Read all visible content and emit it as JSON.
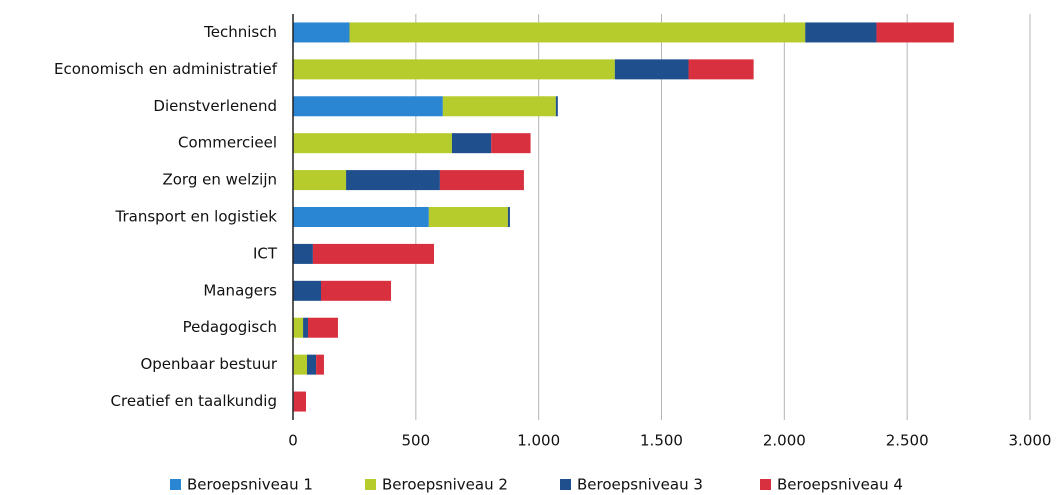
{
  "chart_data": {
    "type": "hbar-stacked",
    "categories": [
      "Technisch",
      "Economisch en administratief",
      "Dienstverlenend",
      "Commercieel",
      "Zorg en welzijn",
      "Transport en logistiek",
      "ICT",
      "Managers",
      "Pedagogisch",
      "Openbaar bestuur",
      "Creatief en taalkundig"
    ],
    "series": [
      {
        "name": "Beroepsniveau 1",
        "color": "#2a85d3",
        "values": [
          230,
          0,
          610,
          0,
          0,
          553,
          0,
          0,
          0,
          0,
          0
        ]
      },
      {
        "name": "Beroepsniveau 2",
        "color": "#b6cc2c",
        "values": [
          1855,
          1310,
          460,
          647,
          216,
          322,
          0,
          0,
          41,
          57,
          0
        ]
      },
      {
        "name": "Beroepsniveau 3",
        "color": "#1f4f8c",
        "values": [
          290,
          300,
          8,
          160,
          382,
          8,
          81,
          114,
          20,
          37,
          3
        ]
      },
      {
        "name": "Beroepsniveau 4",
        "color": "#d9303f",
        "values": [
          315,
          265,
          0,
          160,
          342,
          0,
          493,
          285,
          122,
          32,
          50
        ]
      }
    ],
    "xlim": [
      0,
      3000
    ],
    "xticks": [
      0,
      500,
      {
        "value": 1000,
        "label": "1.000"
      },
      {
        "value": 1500,
        "label": "1.500"
      },
      {
        "value": 2000,
        "label": "2.000"
      },
      {
        "value": 2500,
        "label": "2.500"
      },
      {
        "value": 3000,
        "label": "3.000"
      }
    ],
    "grid": true,
    "legend": "bottom"
  }
}
